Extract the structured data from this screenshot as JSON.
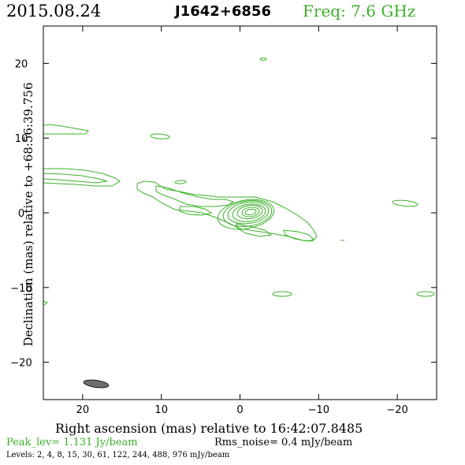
{
  "header": {
    "date": "2015.08.24",
    "source": "J1642+6856",
    "freq": "Freq: 7.6 GHz"
  },
  "axes": {
    "xlabel": "Right ascension (mas) relative to 16:42:07.8485",
    "ylabel": "Declination (mas) relative to +68:56:39.756"
  },
  "footer": {
    "peak": "Peak_lev=  1.131 Jy/beam",
    "rms": "Rms_noise=   0.4 mJy/beam",
    "levels": "Levels:   2,    4,    8,   15,   30,   61,  122,  244,  488,  976  mJy/beam"
  },
  "colors": {
    "contour": "#3cb02a",
    "beam": "#6e6e6e"
  },
  "chart_data": {
    "type": "contour",
    "xlim": [
      25,
      -25
    ],
    "ylim": [
      -25,
      25
    ],
    "x_ticks": [
      {
        "v": 20,
        "label": "20"
      },
      {
        "v": 10,
        "label": "10"
      },
      {
        "v": 0,
        "label": "0"
      },
      {
        "v": -10,
        "label": "−10"
      },
      {
        "v": -20,
        "label": "−20"
      }
    ],
    "y_ticks": [
      {
        "v": 20,
        "label": "20"
      },
      {
        "v": 10,
        "label": "10"
      },
      {
        "v": 0,
        "label": "0"
      },
      {
        "v": -10,
        "label": "−10"
      },
      {
        "v": -20,
        "label": "−20"
      }
    ],
    "core": {
      "x": 0,
      "y": 0
    },
    "levels_mjy": [
      2,
      4,
      8,
      15,
      30,
      61,
      122,
      244,
      488,
      976
    ],
    "beam": {
      "x": 20.2,
      "y": -23.1,
      "major_mas": 3.4,
      "minor_mas": 1.2,
      "pa_deg": -8
    }
  }
}
